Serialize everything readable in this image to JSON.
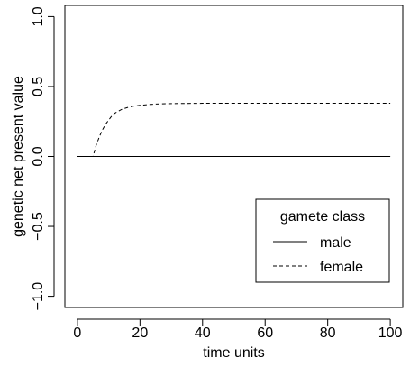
{
  "chart_data": {
    "type": "line",
    "title": "",
    "xlabel": "time units",
    "ylabel": "genetic net present value",
    "xlim": [
      -4,
      104
    ],
    "ylim": [
      -1.08,
      1.08
    ],
    "xticks": [
      0,
      20,
      40,
      60,
      80,
      100
    ],
    "xtick_labels": [
      "0",
      "20",
      "40",
      "60",
      "80",
      "100"
    ],
    "yticks": [
      -1.0,
      -0.5,
      0.0,
      0.5,
      1.0
    ],
    "ytick_labels": [
      "−1.0",
      "−0.5",
      "0.0",
      "0.5",
      "1.0"
    ],
    "grid": false,
    "legend": {
      "title": "gamete class",
      "placement": "bottom-right",
      "entries": [
        "male",
        "female"
      ]
    },
    "series": [
      {
        "name": "male",
        "line_style": "solid",
        "color": "#000000",
        "x": [
          0,
          100
        ],
        "y": [
          0.0,
          0.0
        ]
      },
      {
        "name": "female",
        "line_style": "dashed",
        "color": "#000000",
        "x": [
          0,
          5,
          6,
          7,
          8,
          9,
          10,
          11,
          12,
          14,
          16,
          18,
          20,
          25,
          30,
          40,
          60,
          80,
          100
        ],
        "y": [
          0.0,
          0.0,
          0.08,
          0.14,
          0.19,
          0.23,
          0.26,
          0.29,
          0.31,
          0.335,
          0.35,
          0.36,
          0.366,
          0.375,
          0.378,
          0.38,
          0.38,
          0.38,
          0.38
        ]
      }
    ]
  }
}
